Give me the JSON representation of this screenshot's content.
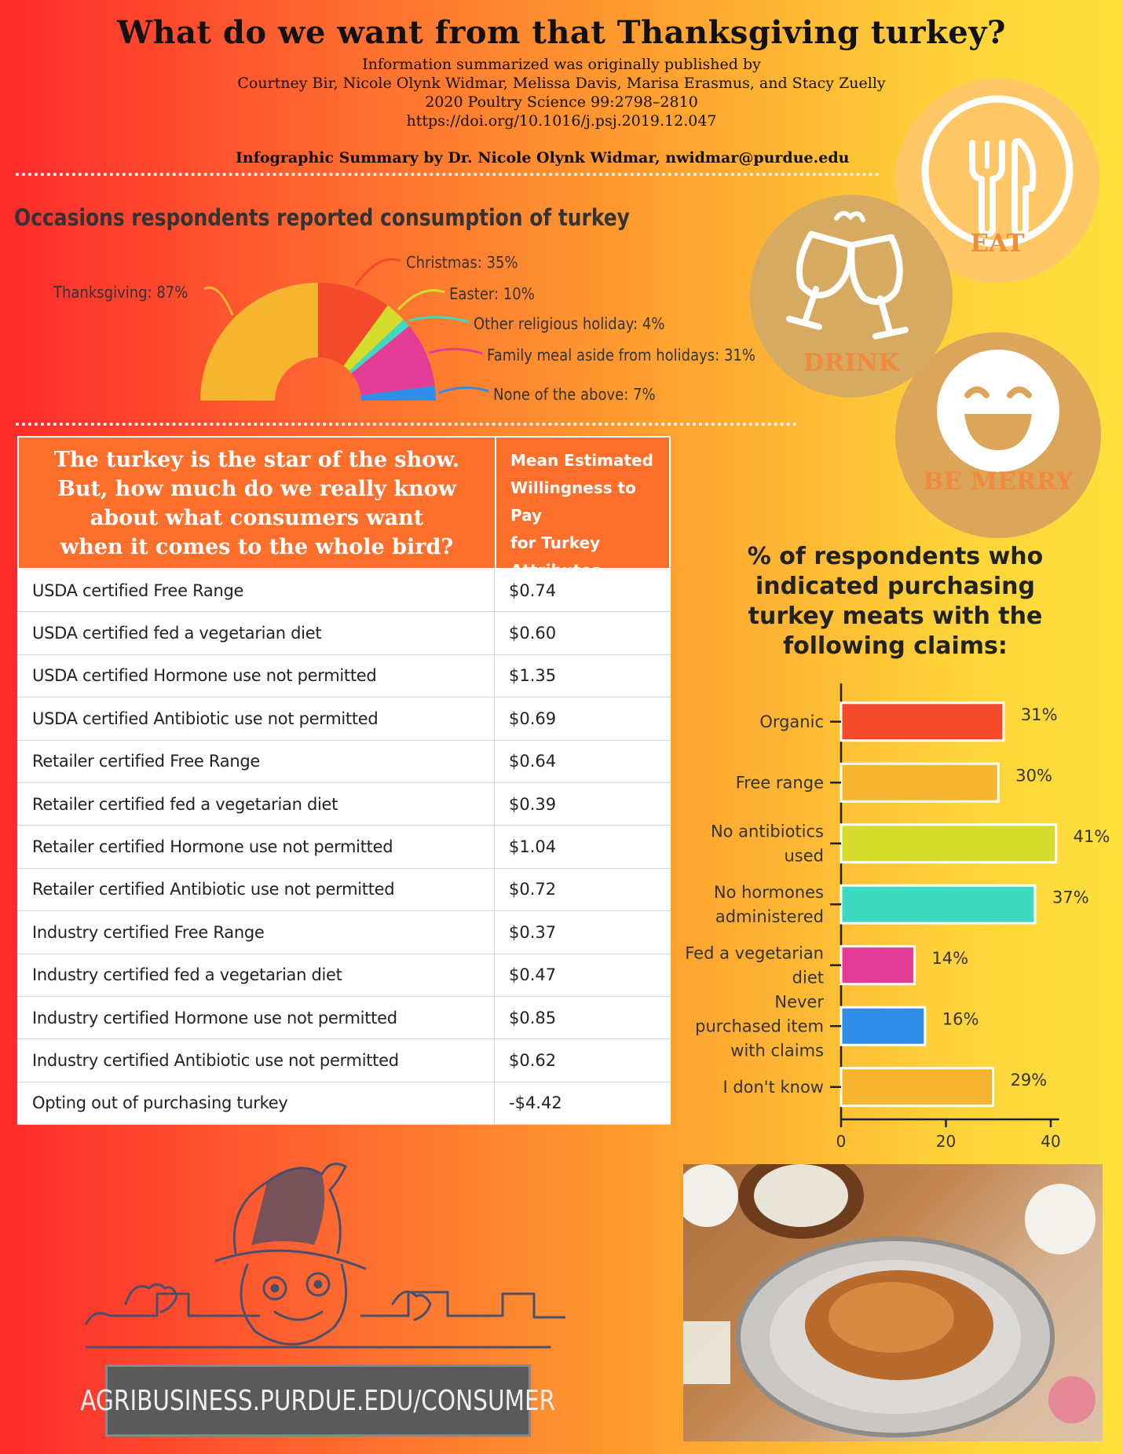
{
  "header": {
    "title": "What do we want from that Thanksgiving turkey?",
    "citation_lines": [
      "Information summarized was originally published by",
      "Courtney Bir, Nicole Olynk Widmar, Melissa Davis, Marisa Erasmus, and Stacy Zuelly",
      "2020 Poultry Science 99:2798–2810",
      "https://doi.org/10.1016/j.psj.2019.12.047"
    ],
    "byline": "Infographic Summary by Dr. Nicole Olynk Widmar, nwidmar@purdue.edu"
  },
  "icons": {
    "eat": "EAT",
    "drink": "DRINK",
    "merry": "BE MERRY"
  },
  "colors": {
    "eat_circle": "#ffc765",
    "drink_circle": "#d6aa60",
    "merry_circle": "#dca65a",
    "table_header": "#fe6f2c",
    "circle_label": "#f08a3e"
  },
  "chart_data": [
    {
      "type": "pie",
      "style": "half-donut",
      "title": "Occasions respondents reported consumption of turkey",
      "categories": [
        "Thanksgiving",
        "Christmas",
        "Easter",
        "Other religious holiday",
        "Family meal aside from holidays",
        "None of the above"
      ],
      "values": [
        87,
        35,
        10,
        4,
        31,
        7
      ],
      "labels": [
        "Thanksgiving: 87%",
        "Christmas: 35%",
        "Easter: 10%",
        "Other religious holiday: 4%",
        "Family meal aside from holidays: 31%",
        "None of the above: 7%"
      ],
      "colors": [
        "#f5b52e",
        "#f34a2b",
        "#d4dc2c",
        "#3ed9c1",
        "#e33c97",
        "#2f8fe8"
      ]
    },
    {
      "type": "table",
      "header_left": "The turkey is the star of the show. But, how much do we really know about what consumers want when it comes to the whole bird?",
      "header_left_lines": [
        "The turkey is the star of the show.",
        "But, how much do we really know",
        "about what consumers want",
        "when it comes to the whole bird?"
      ],
      "header_right_lines": [
        "Mean Estimated",
        "Willingness to Pay",
        "for Turkey",
        "Attributes"
      ],
      "rows": [
        {
          "attribute": "USDA certified Free Range",
          "value": "$0.74"
        },
        {
          "attribute": "USDA certified fed a vegetarian diet",
          "value": "$0.60"
        },
        {
          "attribute": "USDA certified Hormone use not permitted",
          "value": "$1.35"
        },
        {
          "attribute": "USDA certified Antibiotic use not permitted",
          "value": "$0.69"
        },
        {
          "attribute": "Retailer certified Free Range",
          "value": "$0.64"
        },
        {
          "attribute": "Retailer certified fed a vegetarian diet",
          "value": "$0.39"
        },
        {
          "attribute": "Retailer certified Hormone use not permitted",
          "value": "$1.04"
        },
        {
          "attribute": "Retailer certified Antibiotic use not permitted",
          "value": "$0.72"
        },
        {
          "attribute": "Industry certified Free Range",
          "value": "$0.37"
        },
        {
          "attribute": "Industry certified fed a vegetarian diet",
          "value": "$0.47"
        },
        {
          "attribute": "Industry certified Hormone use not permitted",
          "value": "$0.85"
        },
        {
          "attribute": "Industry certified Antibiotic use not permitted",
          "value": "$0.62"
        },
        {
          "attribute": "Opting out of purchasing turkey",
          "value": "-$4.42"
        }
      ]
    },
    {
      "type": "bar",
      "orientation": "horizontal",
      "title": "% of respondents who indicated purchasing turkey meats with the following claims:",
      "title_lines": [
        "% of respondents who",
        "indicated purchasing",
        "turkey meats with the",
        "following claims:"
      ],
      "categories": [
        "Organic",
        "Free range",
        "No antibiotics used",
        "No hormones administered",
        "Fed a vegetarian diet",
        "Never purchased item with claims",
        "I don't know"
      ],
      "category_lines": [
        [
          "Organic"
        ],
        [
          "Free range"
        ],
        [
          "No antibiotics",
          "used"
        ],
        [
          "No hormones",
          "administered"
        ],
        [
          "Fed a vegetarian",
          "diet"
        ],
        [
          "Never",
          "purchased item",
          "with claims"
        ],
        [
          "I don't know"
        ]
      ],
      "values": [
        31,
        30,
        41,
        37,
        14,
        16,
        29
      ],
      "value_labels": [
        "31%",
        "30%",
        "41%",
        "37%",
        "14%",
        "16%",
        "29%"
      ],
      "colors": [
        "#f34a2b",
        "#f5b52e",
        "#d4dc2c",
        "#3ed9c1",
        "#e33c97",
        "#2f8fe8",
        "#f5b52e"
      ],
      "xlim": [
        0,
        41
      ],
      "xticks": [
        0,
        20,
        40
      ]
    }
  ],
  "footer": {
    "url": "AGRIBUSINESS.PURDUE.EDU/CONSUMER"
  }
}
